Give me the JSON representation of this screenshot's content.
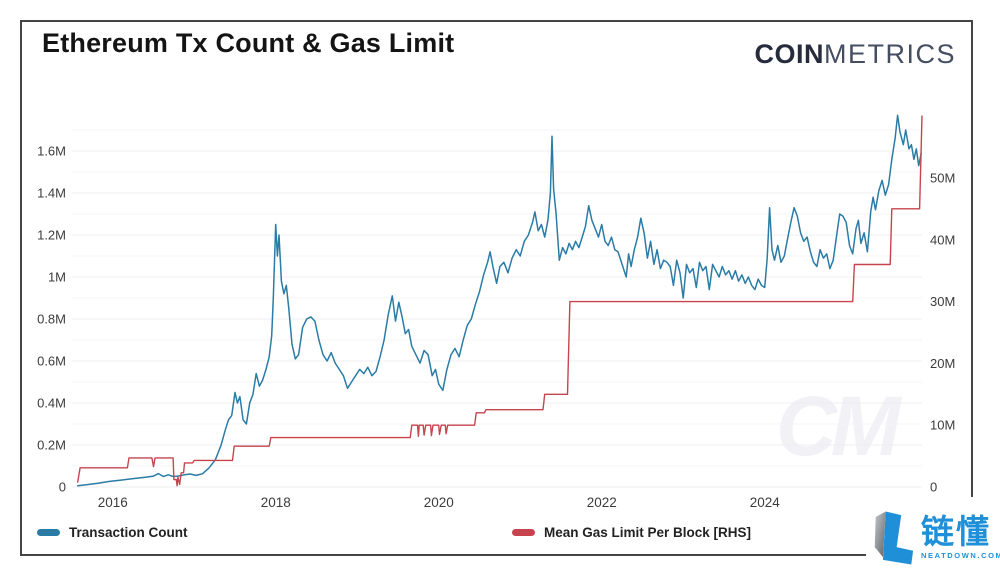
{
  "header": {
    "title": "Ethereum Tx Count & Gas Limit",
    "brand_bold": "COIN",
    "brand_light": "METRICS"
  },
  "watermark": "CM",
  "legend": [
    {
      "label": "Transaction Count",
      "color": "#2a7ca6"
    },
    {
      "label": "Mean Gas Limit Per Block [RHS]",
      "color": "#c7444e"
    }
  ],
  "footer_logo": {
    "cjk": "链懂",
    "site": "NEATDOWN.COM",
    "color": "#1f90d8",
    "gray": "#7d838a"
  },
  "chart_data": {
    "type": "line",
    "title": "Ethereum Tx Count & Gas Limit",
    "xlabel": "",
    "ylabel_left": "Transaction Count",
    "ylabel_right": "Mean Gas Limit Per Block",
    "grid": "horizontal, very faint",
    "legend_position": "bottom",
    "x_axis": {
      "min": 2015.5,
      "max": 2025.93,
      "ticks": [
        2016,
        2018,
        2020,
        2022,
        2024
      ],
      "tick_labels": [
        "2016",
        "2018",
        "2020",
        "2022",
        "2024"
      ]
    },
    "y_left": {
      "min": 0,
      "max": 1.819,
      "unit": "millions of transactions",
      "ticks": [
        0,
        0.2,
        0.4,
        0.6,
        0.8,
        1.0,
        1.2,
        1.4,
        1.6
      ],
      "tick_labels": [
        "0",
        "0.2M",
        "0.4M",
        "0.6M",
        "0.8M",
        "1M",
        "1.2M",
        "1.4M",
        "1.6M"
      ]
    },
    "y_right": {
      "min": 0,
      "max": 61.8,
      "unit": "millions of gas",
      "ticks": [
        0,
        10,
        20,
        30,
        40,
        50
      ],
      "tick_labels": [
        "0",
        "10M",
        "20M",
        "30M",
        "40M",
        "50M"
      ]
    },
    "series": [
      {
        "name": "Transaction Count",
        "axis": "left",
        "color": "#2a7ca6",
        "width": 1.5,
        "points": [
          [
            2015.57,
            0.006
          ],
          [
            2015.7,
            0.012
          ],
          [
            2015.82,
            0.018
          ],
          [
            2015.95,
            0.026
          ],
          [
            2016.1,
            0.033
          ],
          [
            2016.25,
            0.04
          ],
          [
            2016.4,
            0.046
          ],
          [
            2016.5,
            0.052
          ],
          [
            2016.56,
            0.064
          ],
          [
            2016.62,
            0.05
          ],
          [
            2016.68,
            0.058
          ],
          [
            2016.74,
            0.05
          ],
          [
            2016.8,
            0.052
          ],
          [
            2016.88,
            0.058
          ],
          [
            2016.95,
            0.062
          ],
          [
            2017.02,
            0.055
          ],
          [
            2017.1,
            0.063
          ],
          [
            2017.18,
            0.09
          ],
          [
            2017.26,
            0.13
          ],
          [
            2017.33,
            0.2
          ],
          [
            2017.38,
            0.27
          ],
          [
            2017.42,
            0.32
          ],
          [
            2017.46,
            0.34
          ],
          [
            2017.5,
            0.45
          ],
          [
            2017.53,
            0.4
          ],
          [
            2017.56,
            0.43
          ],
          [
            2017.6,
            0.32
          ],
          [
            2017.64,
            0.3
          ],
          [
            2017.68,
            0.4
          ],
          [
            2017.72,
            0.44
          ],
          [
            2017.76,
            0.54
          ],
          [
            2017.8,
            0.48
          ],
          [
            2017.84,
            0.51
          ],
          [
            2017.88,
            0.56
          ],
          [
            2017.92,
            0.62
          ],
          [
            2017.95,
            0.72
          ],
          [
            2017.97,
            0.9
          ],
          [
            2018.0,
            1.25
          ],
          [
            2018.02,
            1.1
          ],
          [
            2018.04,
            1.2
          ],
          [
            2018.07,
            0.98
          ],
          [
            2018.1,
            0.92
          ],
          [
            2018.13,
            0.96
          ],
          [
            2018.16,
            0.85
          ],
          [
            2018.2,
            0.68
          ],
          [
            2018.24,
            0.61
          ],
          [
            2018.28,
            0.63
          ],
          [
            2018.33,
            0.76
          ],
          [
            2018.38,
            0.8
          ],
          [
            2018.43,
            0.81
          ],
          [
            2018.48,
            0.79
          ],
          [
            2018.53,
            0.7
          ],
          [
            2018.58,
            0.63
          ],
          [
            2018.63,
            0.6
          ],
          [
            2018.68,
            0.64
          ],
          [
            2018.73,
            0.59
          ],
          [
            2018.78,
            0.56
          ],
          [
            2018.83,
            0.53
          ],
          [
            2018.88,
            0.47
          ],
          [
            2018.93,
            0.5
          ],
          [
            2018.98,
            0.53
          ],
          [
            2019.03,
            0.56
          ],
          [
            2019.08,
            0.54
          ],
          [
            2019.13,
            0.57
          ],
          [
            2019.18,
            0.53
          ],
          [
            2019.23,
            0.55
          ],
          [
            2019.28,
            0.62
          ],
          [
            2019.33,
            0.7
          ],
          [
            2019.38,
            0.82
          ],
          [
            2019.43,
            0.91
          ],
          [
            2019.47,
            0.79
          ],
          [
            2019.51,
            0.88
          ],
          [
            2019.55,
            0.81
          ],
          [
            2019.59,
            0.73
          ],
          [
            2019.63,
            0.75
          ],
          [
            2019.67,
            0.67
          ],
          [
            2019.72,
            0.63
          ],
          [
            2019.77,
            0.59
          ],
          [
            2019.82,
            0.65
          ],
          [
            2019.87,
            0.63
          ],
          [
            2019.92,
            0.53
          ],
          [
            2019.96,
            0.56
          ],
          [
            2020.0,
            0.49
          ],
          [
            2020.05,
            0.46
          ],
          [
            2020.1,
            0.56
          ],
          [
            2020.15,
            0.63
          ],
          [
            2020.2,
            0.66
          ],
          [
            2020.25,
            0.62
          ],
          [
            2020.3,
            0.7
          ],
          [
            2020.35,
            0.77
          ],
          [
            2020.4,
            0.8
          ],
          [
            2020.45,
            0.87
          ],
          [
            2020.5,
            0.93
          ],
          [
            2020.55,
            1.01
          ],
          [
            2020.6,
            1.07
          ],
          [
            2020.63,
            1.12
          ],
          [
            2020.67,
            1.04
          ],
          [
            2020.71,
            0.97
          ],
          [
            2020.75,
            1.05
          ],
          [
            2020.8,
            1.07
          ],
          [
            2020.85,
            1.02
          ],
          [
            2020.9,
            1.09
          ],
          [
            2020.95,
            1.13
          ],
          [
            2021.0,
            1.1
          ],
          [
            2021.05,
            1.17
          ],
          [
            2021.1,
            1.2
          ],
          [
            2021.15,
            1.26
          ],
          [
            2021.18,
            1.31
          ],
          [
            2021.22,
            1.22
          ],
          [
            2021.26,
            1.25
          ],
          [
            2021.3,
            1.19
          ],
          [
            2021.34,
            1.27
          ],
          [
            2021.37,
            1.4
          ],
          [
            2021.39,
            1.67
          ],
          [
            2021.41,
            1.42
          ],
          [
            2021.44,
            1.3
          ],
          [
            2021.48,
            1.08
          ],
          [
            2021.52,
            1.14
          ],
          [
            2021.56,
            1.11
          ],
          [
            2021.6,
            1.16
          ],
          [
            2021.64,
            1.13
          ],
          [
            2021.68,
            1.17
          ],
          [
            2021.72,
            1.14
          ],
          [
            2021.76,
            1.19
          ],
          [
            2021.8,
            1.24
          ],
          [
            2021.84,
            1.34
          ],
          [
            2021.88,
            1.27
          ],
          [
            2021.92,
            1.23
          ],
          [
            2021.96,
            1.19
          ],
          [
            2022.0,
            1.25
          ],
          [
            2022.04,
            1.17
          ],
          [
            2022.08,
            1.15
          ],
          [
            2022.12,
            1.19
          ],
          [
            2022.16,
            1.13
          ],
          [
            2022.2,
            1.12
          ],
          [
            2022.25,
            1.06
          ],
          [
            2022.3,
            1.0
          ],
          [
            2022.33,
            1.11
          ],
          [
            2022.36,
            1.05
          ],
          [
            2022.4,
            1.13
          ],
          [
            2022.44,
            1.19
          ],
          [
            2022.48,
            1.28
          ],
          [
            2022.52,
            1.21
          ],
          [
            2022.56,
            1.09
          ],
          [
            2022.6,
            1.17
          ],
          [
            2022.64,
            1.06
          ],
          [
            2022.68,
            1.13
          ],
          [
            2022.72,
            1.04
          ],
          [
            2022.76,
            1.08
          ],
          [
            2022.8,
            1.07
          ],
          [
            2022.84,
            1.05
          ],
          [
            2022.88,
            0.96
          ],
          [
            2022.92,
            1.08
          ],
          [
            2022.96,
            1.02
          ],
          [
            2023.0,
            0.9
          ],
          [
            2023.04,
            1.06
          ],
          [
            2023.08,
            1.02
          ],
          [
            2023.12,
            1.04
          ],
          [
            2023.16,
            0.95
          ],
          [
            2023.2,
            1.07
          ],
          [
            2023.24,
            1.03
          ],
          [
            2023.28,
            1.05
          ],
          [
            2023.32,
            0.94
          ],
          [
            2023.36,
            1.06
          ],
          [
            2023.4,
            1.03
          ],
          [
            2023.44,
            1.0
          ],
          [
            2023.48,
            1.05
          ],
          [
            2023.52,
            1.01
          ],
          [
            2023.56,
            1.03
          ],
          [
            2023.6,
            0.99
          ],
          [
            2023.64,
            1.03
          ],
          [
            2023.68,
            0.98
          ],
          [
            2023.72,
            1.01
          ],
          [
            2023.76,
            0.97
          ],
          [
            2023.8,
            1.0
          ],
          [
            2023.84,
            0.96
          ],
          [
            2023.88,
            0.94
          ],
          [
            2023.92,
            0.99
          ],
          [
            2023.96,
            0.96
          ],
          [
            2024.0,
            0.95
          ],
          [
            2024.03,
            1.09
          ],
          [
            2024.06,
            1.33
          ],
          [
            2024.09,
            1.13
          ],
          [
            2024.12,
            1.08
          ],
          [
            2024.16,
            1.15
          ],
          [
            2024.2,
            1.07
          ],
          [
            2024.24,
            1.1
          ],
          [
            2024.28,
            1.18
          ],
          [
            2024.32,
            1.26
          ],
          [
            2024.36,
            1.33
          ],
          [
            2024.4,
            1.29
          ],
          [
            2024.44,
            1.21
          ],
          [
            2024.48,
            1.17
          ],
          [
            2024.52,
            1.19
          ],
          [
            2024.56,
            1.12
          ],
          [
            2024.6,
            1.07
          ],
          [
            2024.64,
            1.05
          ],
          [
            2024.68,
            1.13
          ],
          [
            2024.72,
            1.09
          ],
          [
            2024.76,
            1.11
          ],
          [
            2024.8,
            1.04
          ],
          [
            2024.84,
            1.08
          ],
          [
            2024.88,
            1.19
          ],
          [
            2024.92,
            1.3
          ],
          [
            2024.96,
            1.29
          ],
          [
            2025.0,
            1.26
          ],
          [
            2025.04,
            1.15
          ],
          [
            2025.08,
            1.11
          ],
          [
            2025.12,
            1.23
          ],
          [
            2025.15,
            1.27
          ],
          [
            2025.18,
            1.16
          ],
          [
            2025.22,
            1.21
          ],
          [
            2025.26,
            1.12
          ],
          [
            2025.3,
            1.31
          ],
          [
            2025.33,
            1.38
          ],
          [
            2025.36,
            1.32
          ],
          [
            2025.4,
            1.41
          ],
          [
            2025.44,
            1.46
          ],
          [
            2025.48,
            1.39
          ],
          [
            2025.52,
            1.44
          ],
          [
            2025.56,
            1.56
          ],
          [
            2025.6,
            1.66
          ],
          [
            2025.63,
            1.77
          ],
          [
            2025.66,
            1.69
          ],
          [
            2025.7,
            1.63
          ],
          [
            2025.73,
            1.7
          ],
          [
            2025.77,
            1.61
          ],
          [
            2025.8,
            1.63
          ],
          [
            2025.83,
            1.56
          ],
          [
            2025.86,
            1.61
          ],
          [
            2025.89,
            1.53
          ],
          [
            2025.92,
            1.59
          ]
        ]
      },
      {
        "name": "Mean Gas Limit Per Block [RHS]",
        "axis": "right",
        "color": "#c7444e",
        "width": 1.4,
        "points": [
          [
            2015.57,
            0.8
          ],
          [
            2015.6,
            3.1
          ],
          [
            2016.18,
            3.1
          ],
          [
            2016.2,
            4.7
          ],
          [
            2016.48,
            4.7
          ],
          [
            2016.5,
            3.3
          ],
          [
            2016.52,
            4.7
          ],
          [
            2016.74,
            4.7
          ],
          [
            2016.75,
            1.2
          ],
          [
            2016.78,
            1.2
          ],
          [
            2016.79,
            0.2
          ],
          [
            2016.8,
            1.6
          ],
          [
            2016.82,
            0.4
          ],
          [
            2016.84,
            2.3
          ],
          [
            2016.87,
            2.3
          ],
          [
            2016.88,
            3.9
          ],
          [
            2016.98,
            3.9
          ],
          [
            2017.0,
            4.3
          ],
          [
            2017.47,
            4.3
          ],
          [
            2017.49,
            6.6
          ],
          [
            2017.92,
            6.6
          ],
          [
            2017.94,
            8.0
          ],
          [
            2019.65,
            8.0
          ],
          [
            2019.67,
            10.0
          ],
          [
            2019.74,
            10.0
          ],
          [
            2019.75,
            8.2
          ],
          [
            2019.76,
            10.0
          ],
          [
            2019.81,
            10.0
          ],
          [
            2019.82,
            8.4
          ],
          [
            2019.84,
            10.0
          ],
          [
            2019.9,
            10.0
          ],
          [
            2019.91,
            8.3
          ],
          [
            2019.93,
            10.0
          ],
          [
            2020.0,
            10.0
          ],
          [
            2020.01,
            8.5
          ],
          [
            2020.03,
            10.0
          ],
          [
            2020.08,
            10.0
          ],
          [
            2020.09,
            8.6
          ],
          [
            2020.11,
            10.0
          ],
          [
            2020.44,
            10.0
          ],
          [
            2020.46,
            12.0
          ],
          [
            2020.56,
            12.0
          ],
          [
            2020.58,
            12.5
          ],
          [
            2021.28,
            12.5
          ],
          [
            2021.3,
            15.0
          ],
          [
            2021.58,
            15.0
          ],
          [
            2021.61,
            30.0
          ],
          [
            2025.08,
            30.0
          ],
          [
            2025.1,
            36.0
          ],
          [
            2025.54,
            36.0
          ],
          [
            2025.56,
            45.0
          ],
          [
            2025.9,
            45.0
          ],
          [
            2025.93,
            60.0
          ]
        ]
      }
    ]
  }
}
